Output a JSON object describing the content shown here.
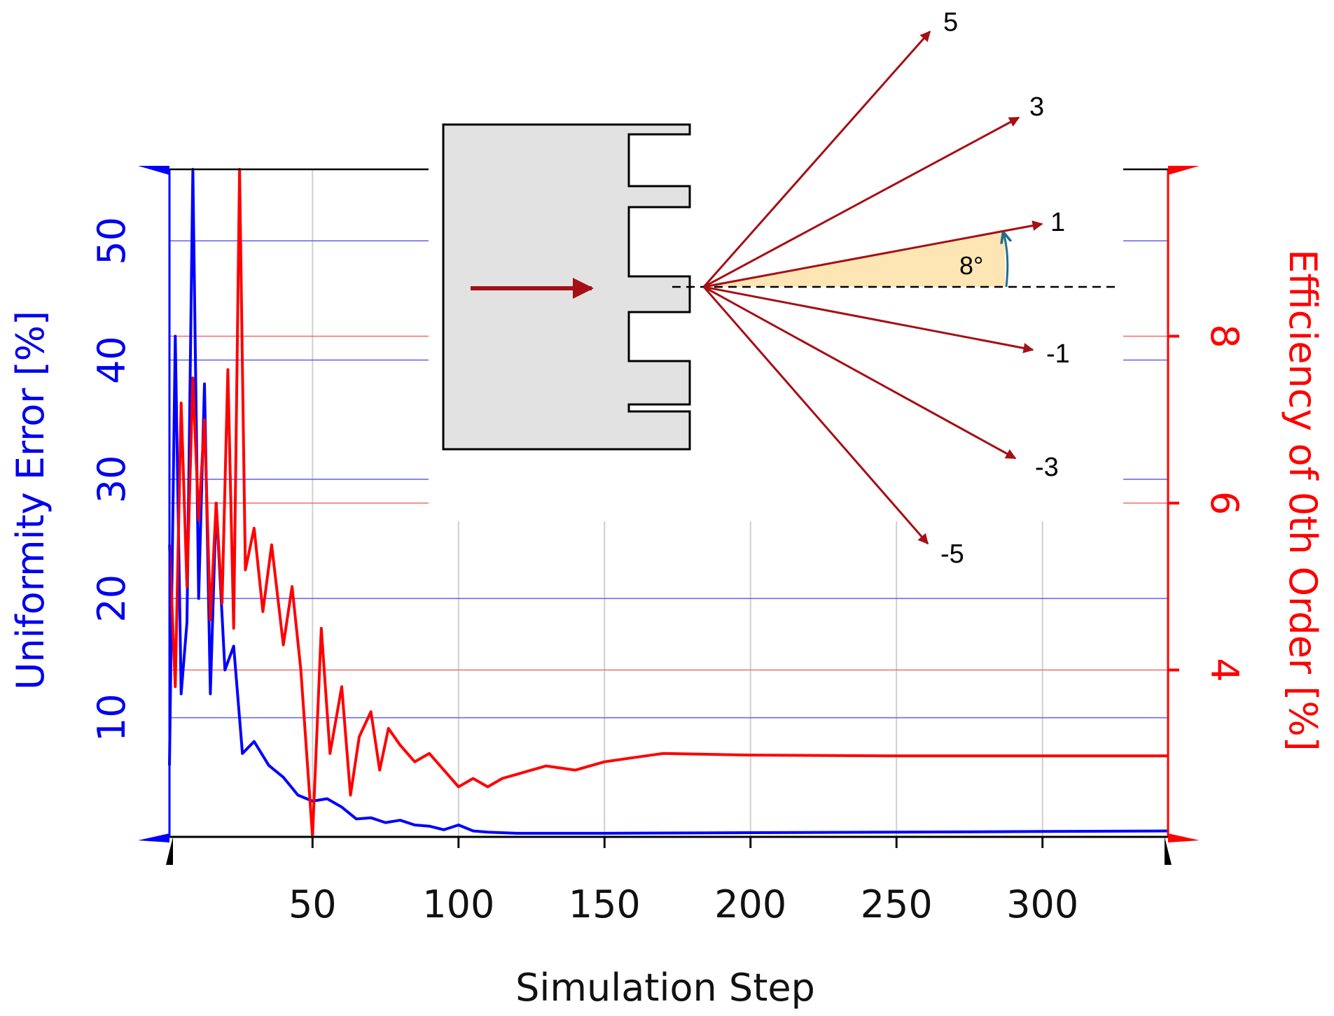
{
  "chart_data": {
    "type": "line",
    "title": "",
    "xlabel": "Simulation Step",
    "ylabel_left": "Uniformity Error [%]",
    "ylabel_right": "Efficiency of 0th Order [%]",
    "xlim": [
      1,
      343
    ],
    "ylim_left": [
      0,
      56
    ],
    "ylim_right": [
      2,
      10
    ],
    "x_ticks": [
      "50",
      "100",
      "150",
      "200",
      "250",
      "300"
    ],
    "y_left_ticks": [
      "10",
      "20",
      "30",
      "40",
      "50"
    ],
    "y_right_ticks": [
      "4",
      "6",
      "8"
    ],
    "grid": true,
    "series": [
      {
        "axis": "left",
        "color": "#0000ff",
        "x": [
          1,
          3,
          5,
          7,
          9,
          11,
          13,
          15,
          17,
          20,
          23,
          26,
          30,
          35,
          40,
          45,
          50,
          55,
          60,
          65,
          70,
          75,
          80,
          85,
          90,
          95,
          100,
          105,
          110,
          120,
          130,
          150,
          200,
          250,
          300,
          343
        ],
        "values": [
          6,
          42,
          12,
          18,
          56,
          20,
          38,
          12,
          28,
          14,
          16,
          7,
          8,
          6,
          5,
          3.5,
          3,
          3.2,
          2.5,
          1.5,
          1.6,
          1.2,
          1.4,
          1.0,
          0.9,
          0.6,
          1.0,
          0.5,
          0.4,
          0.3,
          0.3,
          0.3,
          0.35,
          0.4,
          0.45,
          0.5
        ]
      },
      {
        "axis": "right",
        "color": "#ff0000",
        "x": [
          1,
          3,
          5,
          7,
          9,
          11,
          13,
          15,
          17,
          19,
          21,
          23,
          25,
          27,
          30,
          33,
          36,
          40,
          43,
          46,
          50,
          53,
          56,
          60,
          63,
          66,
          70,
          73,
          76,
          80,
          85,
          90,
          95,
          100,
          105,
          110,
          115,
          120,
          125,
          130,
          140,
          150,
          160,
          170,
          200,
          250,
          300,
          343
        ],
        "values": [
          5.5,
          3.8,
          7.2,
          5.0,
          7.5,
          5.8,
          7.0,
          4.6,
          6.0,
          4.8,
          7.6,
          4.5,
          10.0,
          5.2,
          5.7,
          4.7,
          5.5,
          4.3,
          5.0,
          4.0,
          2.0,
          4.5,
          3.0,
          3.8,
          2.5,
          3.2,
          3.5,
          2.8,
          3.3,
          3.1,
          2.9,
          3.0,
          2.8,
          2.6,
          2.7,
          2.6,
          2.7,
          2.75,
          2.8,
          2.85,
          2.8,
          2.9,
          2.95,
          3.0,
          2.98,
          2.97,
          2.97,
          2.97
        ]
      }
    ],
    "inset": {
      "order_labels": [
        "5",
        "3",
        "1",
        "-1",
        "-3",
        "-5"
      ],
      "angle_label": "8°"
    }
  }
}
